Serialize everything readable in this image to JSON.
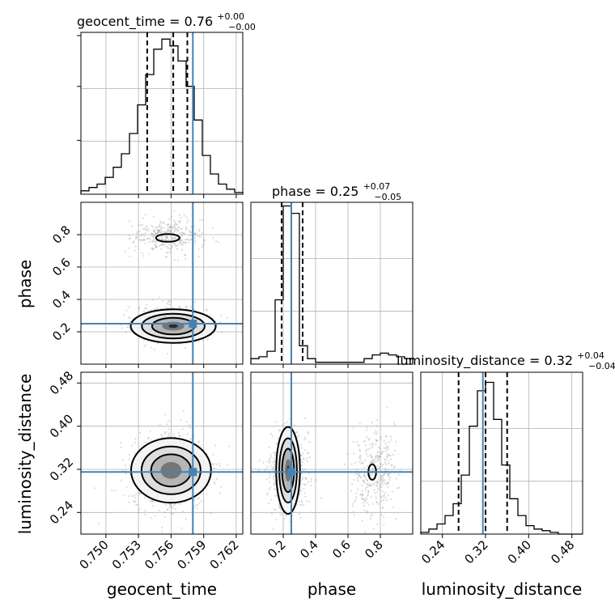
{
  "chart_data": {
    "type": "corner",
    "parameters": [
      {
        "name": "geocent_time",
        "range": [
          0.7477,
          0.7626
        ],
        "ticks": [
          0.75,
          0.753,
          0.756,
          0.759,
          0.762
        ],
        "tick_labels": [
          "0.750",
          "0.753",
          "0.756",
          "0.759",
          "0.762"
        ],
        "truth": 0.758,
        "quantiles": [
          0.7538,
          0.7562,
          0.7575
        ],
        "title_base": "geocent_time = 0.76",
        "title_plus": "+0.00",
        "title_minus": "−0.00",
        "hist_x0": 0.7477,
        "hist_step": 0.000745,
        "hist_counts": [
          2,
          4,
          6,
          10,
          16,
          24,
          36,
          53,
          71,
          86,
          92,
          88,
          79,
          64,
          44,
          23,
          12,
          6,
          3,
          1
        ],
        "hist_ymax": 96
      },
      {
        "name": "phase",
        "range": [
          0.0,
          1.0
        ],
        "ticks": [
          0.2,
          0.4,
          0.6,
          0.8
        ],
        "tick_labels": [
          "0.2",
          "0.4",
          "0.6",
          "0.8"
        ],
        "truth": 0.25,
        "quantiles": [
          0.19,
          0.25,
          0.32
        ],
        "title_base": "phase = 0.25",
        "title_plus": "+0.07",
        "title_minus": "−0.05",
        "hist_x0": 0.0,
        "hist_step": 0.05,
        "hist_counts": [
          3,
          4,
          7,
          35,
          86,
          82,
          10,
          3,
          1,
          1,
          1,
          1,
          1,
          1,
          3,
          5,
          6,
          5,
          4,
          3
        ],
        "hist_ymax": 88
      },
      {
        "name": "luminosity_distance",
        "range": [
          0.2,
          0.5
        ],
        "ticks": [
          0.24,
          0.32,
          0.4,
          0.48
        ],
        "tick_labels": [
          "0.24",
          "0.32",
          "0.40",
          "0.48"
        ],
        "truth": 0.315,
        "quantiles": [
          0.27,
          0.32,
          0.36
        ],
        "title_base": "luminosity_distance = 0.32",
        "title_plus": "+0.04",
        "title_minus": "−0.04",
        "hist_x0": 0.2,
        "hist_step": 0.015,
        "hist_counts": [
          1,
          3,
          6,
          11,
          18,
          35,
          64,
          85,
          90,
          68,
          41,
          21,
          11,
          5,
          3,
          2,
          1,
          0,
          0,
          0
        ],
        "hist_ymax": 96
      }
    ],
    "truth_color": "#4682b4",
    "grid": true
  }
}
